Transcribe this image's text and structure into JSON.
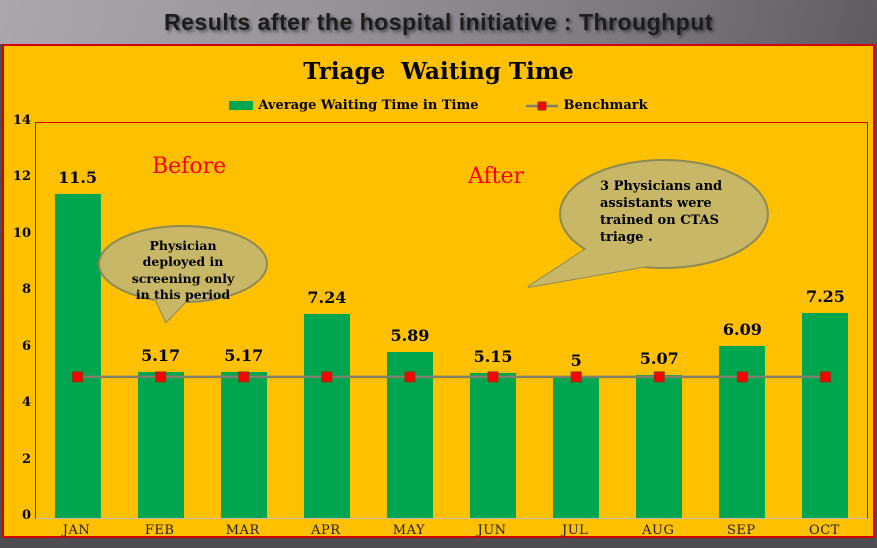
{
  "header": {
    "title": "Results after the hospital initiative : Throughput"
  },
  "chart": {
    "title": "Triage  Waiting Time",
    "legend": {
      "series1_label": "Average Waiting Time in Time",
      "series2_label": "Benchmark"
    }
  },
  "chart_data": {
    "type": "bar",
    "title": "Triage  Waiting Time",
    "categories": [
      "JAN",
      "FEB",
      "MAR",
      "APR",
      "MAY",
      "JUN",
      "JUL",
      "AUG",
      "SEP",
      "OCT"
    ],
    "series": [
      {
        "name": "Average Waiting Time in Time",
        "type": "bar",
        "color": "#00A64F",
        "values": [
          11.5,
          5.17,
          5.17,
          7.24,
          5.89,
          5.15,
          5,
          5.07,
          6.09,
          7.25
        ],
        "value_labels": [
          "11.5",
          "5.17",
          "5.17",
          "7.24",
          "5.89",
          "5.15",
          "5",
          "5.07",
          "6.09",
          "7.25"
        ]
      },
      {
        "name": "Benchmark",
        "type": "line",
        "color": "#7F7F6A",
        "marker": "square",
        "marker_color": "#FF0000",
        "values": [
          5,
          5,
          5,
          5,
          5,
          5,
          5,
          5,
          5,
          5
        ]
      }
    ],
    "ylim": [
      0,
      14
    ],
    "yticks": [
      0,
      2,
      4,
      6,
      8,
      10,
      12,
      14
    ],
    "grid": false,
    "legend_position": "top-center"
  },
  "annotations": {
    "before_label": "Before",
    "after_label": "After",
    "callout1_text": "Physician\ndeployed in\nscreening only\nin this period",
    "callout2_text": "3 Physicians and\nassistants  were\ntrained on CTAS\ntriage ."
  },
  "colors": {
    "chart_background": "#FFC000",
    "chart_border": "#D40000",
    "bar_fill": "#00A64F",
    "benchmark_line": "#7F7F6A",
    "benchmark_marker": "#FF0000",
    "annotation_text": "#FF0000",
    "callout_fill": "#C7B766",
    "callout_border": "#8E8A55"
  }
}
